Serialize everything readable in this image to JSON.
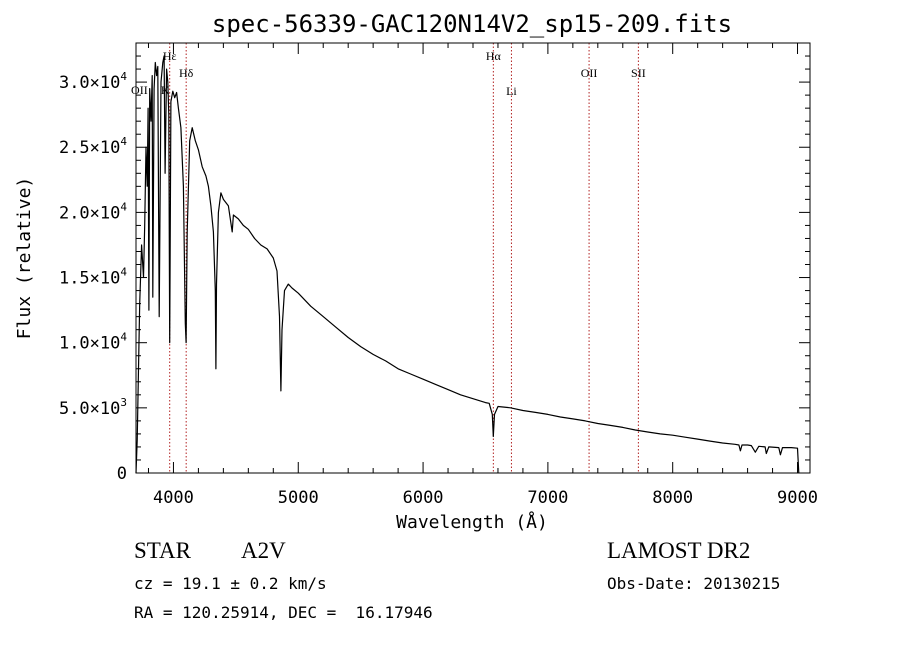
{
  "chart_data": {
    "type": "line",
    "title": "spec-56339-GAC120N14V2_sp15-209.fits",
    "xlabel": "Wavelength (Å)",
    "ylabel": "Flux (relative)",
    "xlim": [
      3700,
      9100
    ],
    "ylim": [
      0,
      33000
    ],
    "x_ticks": [
      {
        "value": 4000,
        "label": "4000"
      },
      {
        "value": 5000,
        "label": "5000"
      },
      {
        "value": 6000,
        "label": "6000"
      },
      {
        "value": 7000,
        "label": "7000"
      },
      {
        "value": 8000,
        "label": "8000"
      },
      {
        "value": 9000,
        "label": "9000"
      }
    ],
    "y_ticks": [
      {
        "value": 0,
        "mantissa": "0",
        "exp": ""
      },
      {
        "value": 5000,
        "mantissa": "5.0×10",
        "exp": "3"
      },
      {
        "value": 10000,
        "mantissa": "1.0×10",
        "exp": "4"
      },
      {
        "value": 15000,
        "mantissa": "1.5×10",
        "exp": "4"
      },
      {
        "value": 20000,
        "mantissa": "2.0×10",
        "exp": "4"
      },
      {
        "value": 25000,
        "mantissa": "2.5×10",
        "exp": "4"
      },
      {
        "value": 30000,
        "mantissa": "3.0×10",
        "exp": "4"
      }
    ],
    "grid": false,
    "series": [
      {
        "points": [
          [
            3700,
            0
          ],
          [
            3710,
            2500
          ],
          [
            3720,
            8000
          ],
          [
            3730,
            13000
          ],
          [
            3745,
            17500
          ],
          [
            3760,
            15000
          ],
          [
            3770,
            19000
          ],
          [
            3780,
            25000
          ],
          [
            3790,
            22000
          ],
          [
            3797,
            28000
          ],
          [
            3803,
            12500
          ],
          [
            3810,
            29500
          ],
          [
            3820,
            27000
          ],
          [
            3830,
            30500
          ],
          [
            3835,
            13500
          ],
          [
            3845,
            29500
          ],
          [
            3855,
            31500
          ],
          [
            3865,
            30500
          ],
          [
            3875,
            31200
          ],
          [
            3886,
            12000
          ],
          [
            3900,
            30000
          ],
          [
            3915,
            31500
          ],
          [
            3925,
            32000
          ],
          [
            3933,
            23000
          ],
          [
            3945,
            31000
          ],
          [
            3955,
            30000
          ],
          [
            3963,
            27500
          ],
          [
            3970,
            10000
          ],
          [
            3980,
            28500
          ],
          [
            3995,
            29300
          ],
          [
            4010,
            28800
          ],
          [
            4025,
            29200
          ],
          [
            4040,
            28000
          ],
          [
            4060,
            26500
          ],
          [
            4080,
            22000
          ],
          [
            4095,
            11500
          ],
          [
            4101,
            10000
          ],
          [
            4110,
            18500
          ],
          [
            4130,
            25500
          ],
          [
            4150,
            26500
          ],
          [
            4175,
            25500
          ],
          [
            4200,
            24800
          ],
          [
            4230,
            23500
          ],
          [
            4260,
            22800
          ],
          [
            4280,
            22000
          ],
          [
            4300,
            20500
          ],
          [
            4320,
            18500
          ],
          [
            4335,
            14000
          ],
          [
            4340,
            8000
          ],
          [
            4345,
            14500
          ],
          [
            4360,
            20000
          ],
          [
            4380,
            21500
          ],
          [
            4400,
            21000
          ],
          [
            4440,
            20500
          ],
          [
            4471,
            18500
          ],
          [
            4480,
            19800
          ],
          [
            4520,
            19500
          ],
          [
            4560,
            19000
          ],
          [
            4600,
            18700
          ],
          [
            4650,
            18000
          ],
          [
            4700,
            17500
          ],
          [
            4750,
            17200
          ],
          [
            4800,
            16500
          ],
          [
            4830,
            15500
          ],
          [
            4850,
            12000
          ],
          [
            4861,
            6300
          ],
          [
            4870,
            11000
          ],
          [
            4890,
            14000
          ],
          [
            4920,
            14500
          ],
          [
            4950,
            14200
          ],
          [
            5000,
            13800
          ],
          [
            5050,
            13300
          ],
          [
            5100,
            12800
          ],
          [
            5200,
            12000
          ],
          [
            5300,
            11200
          ],
          [
            5400,
            10400
          ],
          [
            5500,
            9700
          ],
          [
            5600,
            9100
          ],
          [
            5700,
            8600
          ],
          [
            5800,
            8000
          ],
          [
            5900,
            7600
          ],
          [
            6000,
            7200
          ],
          [
            6100,
            6800
          ],
          [
            6200,
            6400
          ],
          [
            6300,
            6000
          ],
          [
            6400,
            5700
          ],
          [
            6500,
            5400
          ],
          [
            6530,
            5350
          ],
          [
            6555,
            4500
          ],
          [
            6563,
            2800
          ],
          [
            6572,
            4500
          ],
          [
            6600,
            5100
          ],
          [
            6700,
            5000
          ],
          [
            6800,
            4800
          ],
          [
            6900,
            4650
          ],
          [
            7000,
            4500
          ],
          [
            7100,
            4300
          ],
          [
            7200,
            4150
          ],
          [
            7300,
            4000
          ],
          [
            7400,
            3800
          ],
          [
            7500,
            3650
          ],
          [
            7600,
            3500
          ],
          [
            7700,
            3300
          ],
          [
            7800,
            3150
          ],
          [
            7900,
            3000
          ],
          [
            8000,
            2900
          ],
          [
            8100,
            2750
          ],
          [
            8200,
            2600
          ],
          [
            8300,
            2450
          ],
          [
            8400,
            2300
          ],
          [
            8500,
            2200
          ],
          [
            8530,
            2150
          ],
          [
            8542,
            1700
          ],
          [
            8555,
            2150
          ],
          [
            8600,
            2150
          ],
          [
            8630,
            2100
          ],
          [
            8662,
            1600
          ],
          [
            8690,
            2050
          ],
          [
            8740,
            2000
          ],
          [
            8750,
            1500
          ],
          [
            8770,
            2000
          ],
          [
            8850,
            1950
          ],
          [
            8863,
            1400
          ],
          [
            8880,
            1950
          ],
          [
            8950,
            1950
          ],
          [
            9000,
            1900
          ],
          [
            9010,
            0
          ]
        ]
      }
    ],
    "reference_lines": [
      {
        "label": "Hε",
        "x": 3970,
        "label_row": 0,
        "show_line": true
      },
      {
        "label": "OII",
        "x": 3727,
        "label_row": 1,
        "show_line": false
      },
      {
        "label": "K",
        "x": 3934,
        "label_row": 1,
        "show_line": false
      },
      {
        "label": "Hδ",
        "x": 4102,
        "label_row": 2,
        "show_line": true
      },
      {
        "label": "Hα",
        "x": 6563,
        "label_row": 0,
        "show_line": true
      },
      {
        "label": "Li",
        "x": 6708,
        "label_row": 3,
        "show_line": true
      },
      {
        "label": "OII",
        "x": 7330,
        "label_row": 2,
        "show_line": true
      },
      {
        "label": "SII",
        "x": 7725,
        "label_row": 2,
        "show_line": true
      }
    ],
    "colors": {
      "spectrum": "#000000",
      "reference_line": "#b22222",
      "axes": "#000000"
    }
  },
  "info": {
    "object_class": "STAR",
    "subclass": "A2V",
    "survey": "LAMOST DR2",
    "redshift_text": "cz = 19.1 ± 0.2 km/s",
    "obs_date_text": "Obs-Date: 20130215",
    "coordinates_text": "RA = 120.25914, DEC =  16.17946"
  }
}
